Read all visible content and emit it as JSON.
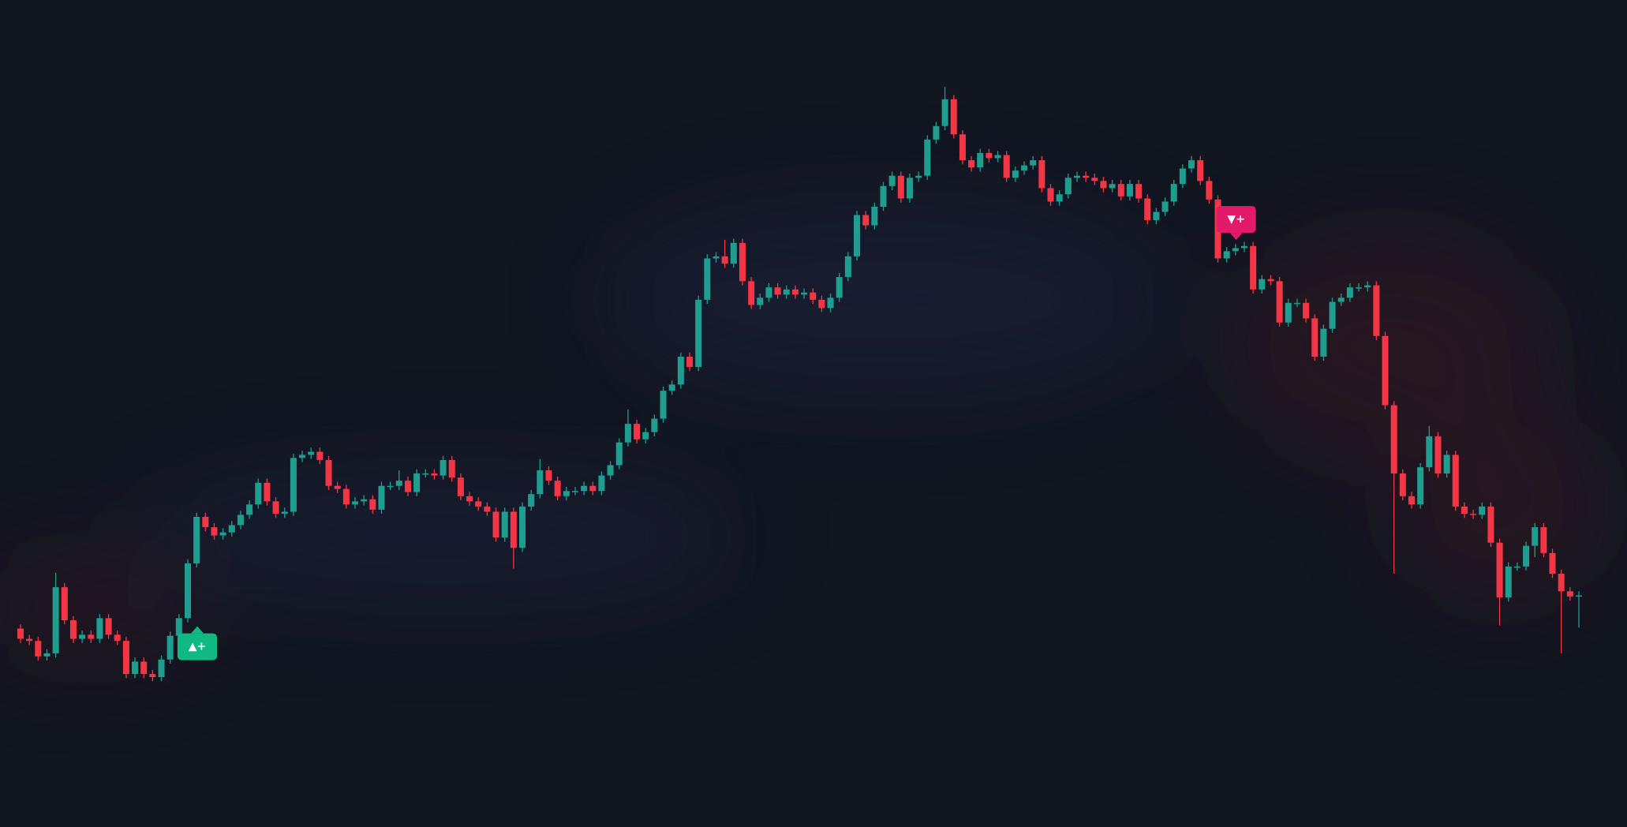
{
  "chart_data": {
    "type": "candlestick",
    "ylim": [
      0,
      800
    ],
    "up_color": "#1f9d8f",
    "down_color": "#f23645",
    "open": [
      192,
      182,
      180,
      165,
      168,
      232,
      200,
      182,
      186,
      182,
      202,
      186,
      180,
      148,
      160,
      148,
      145,
      162,
      185,
      202,
      255,
      300,
      290,
      282,
      285,
      292,
      302,
      312,
      333,
      315,
      303,
      305,
      357,
      360,
      363,
      355,
      330,
      327,
      312,
      315,
      317,
      307,
      330,
      330,
      335,
      324,
      342,
      342,
      340,
      355,
      338,
      320,
      315,
      310,
      305,
      280,
      305,
      270,
      310,
      322,
      345,
      335,
      320,
      325,
      325,
      330,
      325,
      340,
      350,
      372,
      390,
      375,
      382,
      395,
      422,
      428,
      455,
      445,
      510,
      550,
      552,
      545,
      565,
      528,
      505,
      512,
      522,
      515,
      520,
      515,
      517,
      510,
      502,
      512,
      532,
      552,
      592,
      582,
      600,
      620,
      630,
      608,
      628,
      630,
      665,
      678,
      704,
      670,
      645,
      638,
      652,
      647,
      650,
      628,
      635,
      640,
      645,
      618,
      605,
      612,
      628,
      630,
      628,
      625,
      618,
      622,
      610,
      622,
      608,
      587,
      595,
      605,
      622,
      637,
      645,
      625,
      607,
      550,
      557,
      560,
      562,
      520,
      530,
      528,
      488,
      507,
      507,
      492,
      455,
      482,
      508,
      512,
      522,
      522,
      524,
      475,
      408,
      342,
      320,
      312,
      348,
      378,
      342,
      360,
      310,
      303,
      302,
      310,
      275,
      222,
      252,
      252,
      272,
      290,
      265,
      245,
      228,
      223
    ],
    "high": [
      196,
      186,
      184,
      172,
      246,
      236,
      204,
      190,
      190,
      206,
      206,
      190,
      184,
      164,
      164,
      152,
      166,
      189,
      206,
      259,
      304,
      304,
      294,
      289,
      296,
      306,
      316,
      337,
      337,
      319,
      309,
      361,
      364,
      367,
      367,
      359,
      334,
      331,
      319,
      321,
      321,
      334,
      334,
      345,
      339,
      346,
      346,
      346,
      359,
      359,
      342,
      324,
      319,
      314,
      309,
      309,
      309,
      314,
      326,
      356,
      349,
      339,
      329,
      329,
      334,
      334,
      344,
      354,
      376,
      404,
      394,
      386,
      399,
      426,
      432,
      459,
      459,
      514,
      554,
      556,
      568,
      569,
      569,
      532,
      516,
      526,
      526,
      524,
      524,
      521,
      521,
      514,
      516,
      536,
      556,
      596,
      596,
      604,
      624,
      634,
      634,
      632,
      634,
      669,
      682,
      716,
      708,
      674,
      649,
      656,
      656,
      654,
      654,
      639,
      644,
      649,
      649,
      622,
      616,
      632,
      634,
      634,
      632,
      629,
      626,
      626,
      626,
      626,
      612,
      599,
      609,
      626,
      641,
      649,
      649,
      629,
      611,
      561,
      564,
      566,
      566,
      534,
      534,
      532,
      511,
      511,
      511,
      496,
      486,
      512,
      516,
      526,
      526,
      528,
      528,
      479,
      412,
      346,
      324,
      352,
      388,
      382,
      364,
      364,
      314,
      307,
      314,
      314,
      279,
      256,
      256,
      276,
      294,
      294,
      269,
      249,
      232,
      228
    ],
    "low": [
      178,
      176,
      161,
      161,
      164,
      196,
      178,
      178,
      178,
      178,
      182,
      176,
      144,
      144,
      144,
      141,
      141,
      158,
      181,
      198,
      251,
      286,
      278,
      278,
      281,
      288,
      298,
      308,
      311,
      299,
      299,
      301,
      353,
      356,
      351,
      326,
      323,
      308,
      308,
      311,
      303,
      303,
      326,
      326,
      320,
      320,
      338,
      336,
      336,
      334,
      316,
      311,
      306,
      301,
      276,
      276,
      250,
      266,
      306,
      318,
      331,
      316,
      316,
      321,
      321,
      321,
      321,
      336,
      346,
      368,
      371,
      371,
      378,
      391,
      418,
      424,
      441,
      441,
      506,
      546,
      541,
      541,
      524,
      501,
      501,
      508,
      511,
      511,
      511,
      511,
      506,
      498,
      498,
      508,
      528,
      548,
      578,
      578,
      596,
      616,
      604,
      604,
      624,
      626,
      661,
      674,
      666,
      641,
      634,
      634,
      643,
      643,
      624,
      624,
      631,
      636,
      614,
      601,
      601,
      608,
      624,
      624,
      621,
      614,
      614,
      606,
      606,
      604,
      583,
      583,
      591,
      601,
      618,
      633,
      621,
      603,
      546,
      546,
      553,
      556,
      516,
      516,
      524,
      484,
      484,
      503,
      488,
      451,
      451,
      478,
      504,
      508,
      518,
      518,
      471,
      404,
      245,
      316,
      308,
      308,
      344,
      338,
      338,
      306,
      299,
      298,
      298,
      271,
      195,
      218,
      248,
      248,
      261,
      261,
      241,
      168,
      219,
      193
    ],
    "close": [
      182,
      180,
      165,
      168,
      232,
      200,
      182,
      186,
      182,
      202,
      186,
      180,
      148,
      160,
      148,
      145,
      162,
      185,
      202,
      255,
      300,
      290,
      282,
      285,
      292,
      302,
      312,
      333,
      315,
      303,
      305,
      357,
      360,
      363,
      355,
      330,
      327,
      312,
      315,
      317,
      307,
      330,
      330,
      335,
      324,
      342,
      342,
      340,
      355,
      338,
      320,
      315,
      310,
      305,
      280,
      305,
      270,
      310,
      322,
      345,
      335,
      320,
      325,
      325,
      330,
      325,
      340,
      350,
      372,
      390,
      375,
      382,
      395,
      422,
      428,
      455,
      445,
      510,
      550,
      552,
      545,
      565,
      528,
      505,
      512,
      522,
      515,
      520,
      515,
      517,
      510,
      502,
      512,
      532,
      552,
      592,
      582,
      600,
      620,
      630,
      608,
      628,
      630,
      665,
      678,
      704,
      670,
      645,
      638,
      652,
      647,
      650,
      628,
      635,
      640,
      645,
      618,
      605,
      612,
      628,
      630,
      628,
      625,
      618,
      622,
      610,
      622,
      608,
      587,
      595,
      605,
      622,
      637,
      645,
      625,
      607,
      550,
      557,
      560,
      562,
      520,
      530,
      528,
      488,
      507,
      507,
      492,
      455,
      482,
      508,
      512,
      522,
      522,
      524,
      475,
      408,
      342,
      320,
      312,
      348,
      378,
      342,
      360,
      310,
      303,
      302,
      310,
      275,
      222,
      252,
      252,
      272,
      290,
      265,
      245,
      228,
      223,
      224
    ],
    "signals": [
      {
        "index": 19,
        "direction": "up",
        "label": "▲+",
        "color": "#10b981"
      },
      {
        "index": 137,
        "direction": "down",
        "label": "▼+",
        "color": "#e3196a"
      }
    ]
  }
}
